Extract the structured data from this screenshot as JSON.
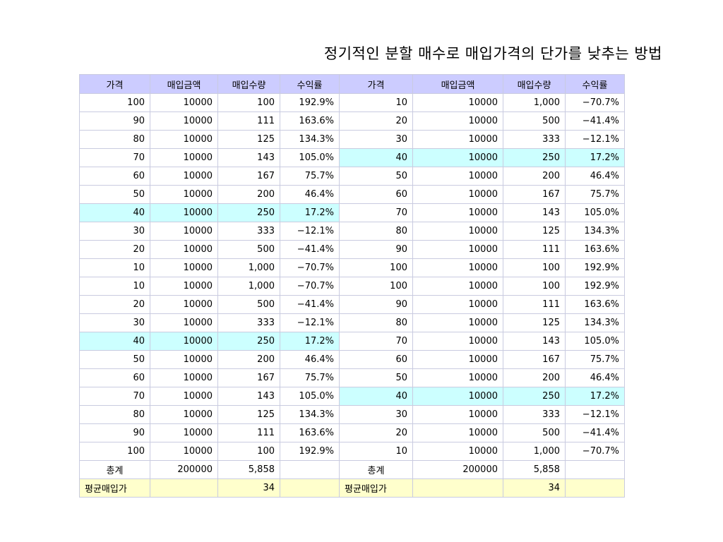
{
  "title": "정기적인 분할 매수로 매입가격의 단가를 낮추는 방법",
  "headers": [
    "가격",
    "매입금액",
    "매입수량",
    "수익률",
    "가격",
    "매입금액",
    "매입수량",
    "수익률"
  ],
  "highlight_color": "#ccffff",
  "header_color": "#ccccff",
  "average_row_color": "#ffffcc",
  "rows": [
    {
      "left": [
        "100",
        "10000",
        "100",
        "192.9%"
      ],
      "right": [
        "10",
        "10000",
        "1,000",
        "−70.7%"
      ],
      "hl_left": false,
      "hl_right": false
    },
    {
      "left": [
        "90",
        "10000",
        "111",
        "163.6%"
      ],
      "right": [
        "20",
        "10000",
        "500",
        "−41.4%"
      ],
      "hl_left": false,
      "hl_right": false
    },
    {
      "left": [
        "80",
        "10000",
        "125",
        "134.3%"
      ],
      "right": [
        "30",
        "10000",
        "333",
        "−12.1%"
      ],
      "hl_left": false,
      "hl_right": false
    },
    {
      "left": [
        "70",
        "10000",
        "143",
        "105.0%"
      ],
      "right": [
        "40",
        "10000",
        "250",
        "17.2%"
      ],
      "hl_left": false,
      "hl_right": true
    },
    {
      "left": [
        "60",
        "10000",
        "167",
        "75.7%"
      ],
      "right": [
        "50",
        "10000",
        "200",
        "46.4%"
      ],
      "hl_left": false,
      "hl_right": false
    },
    {
      "left": [
        "50",
        "10000",
        "200",
        "46.4%"
      ],
      "right": [
        "60",
        "10000",
        "167",
        "75.7%"
      ],
      "hl_left": false,
      "hl_right": false
    },
    {
      "left": [
        "40",
        "10000",
        "250",
        "17.2%"
      ],
      "right": [
        "70",
        "10000",
        "143",
        "105.0%"
      ],
      "hl_left": true,
      "hl_right": false
    },
    {
      "left": [
        "30",
        "10000",
        "333",
        "−12.1%"
      ],
      "right": [
        "80",
        "10000",
        "125",
        "134.3%"
      ],
      "hl_left": false,
      "hl_right": false
    },
    {
      "left": [
        "20",
        "10000",
        "500",
        "−41.4%"
      ],
      "right": [
        "90",
        "10000",
        "111",
        "163.6%"
      ],
      "hl_left": false,
      "hl_right": false
    },
    {
      "left": [
        "10",
        "10000",
        "1,000",
        "−70.7%"
      ],
      "right": [
        "100",
        "10000",
        "100",
        "192.9%"
      ],
      "hl_left": false,
      "hl_right": false
    },
    {
      "left": [
        "10",
        "10000",
        "1,000",
        "−70.7%"
      ],
      "right": [
        "100",
        "10000",
        "100",
        "192.9%"
      ],
      "hl_left": false,
      "hl_right": false
    },
    {
      "left": [
        "20",
        "10000",
        "500",
        "−41.4%"
      ],
      "right": [
        "90",
        "10000",
        "111",
        "163.6%"
      ],
      "hl_left": false,
      "hl_right": false
    },
    {
      "left": [
        "30",
        "10000",
        "333",
        "−12.1%"
      ],
      "right": [
        "80",
        "10000",
        "125",
        "134.3%"
      ],
      "hl_left": false,
      "hl_right": false
    },
    {
      "left": [
        "40",
        "10000",
        "250",
        "17.2%"
      ],
      "right": [
        "70",
        "10000",
        "143",
        "105.0%"
      ],
      "hl_left": true,
      "hl_right": false
    },
    {
      "left": [
        "50",
        "10000",
        "200",
        "46.4%"
      ],
      "right": [
        "60",
        "10000",
        "167",
        "75.7%"
      ],
      "hl_left": false,
      "hl_right": false
    },
    {
      "left": [
        "60",
        "10000",
        "167",
        "75.7%"
      ],
      "right": [
        "50",
        "10000",
        "200",
        "46.4%"
      ],
      "hl_left": false,
      "hl_right": false
    },
    {
      "left": [
        "70",
        "10000",
        "143",
        "105.0%"
      ],
      "right": [
        "40",
        "10000",
        "250",
        "17.2%"
      ],
      "hl_left": false,
      "hl_right": true
    },
    {
      "left": [
        "80",
        "10000",
        "125",
        "134.3%"
      ],
      "right": [
        "30",
        "10000",
        "333",
        "−12.1%"
      ],
      "hl_left": false,
      "hl_right": false
    },
    {
      "left": [
        "90",
        "10000",
        "111",
        "163.6%"
      ],
      "right": [
        "20",
        "10000",
        "500",
        "−41.4%"
      ],
      "hl_left": false,
      "hl_right": false
    },
    {
      "left": [
        "100",
        "10000",
        "100",
        "192.9%"
      ],
      "right": [
        "10",
        "10000",
        "1,000",
        "−70.7%"
      ],
      "hl_left": false,
      "hl_right": false
    }
  ],
  "total": {
    "left": [
      "총계",
      "200000",
      "5,858",
      ""
    ],
    "right": [
      "총계",
      "200000",
      "5,858",
      ""
    ]
  },
  "average": {
    "left": [
      "평균매입가",
      "",
      "34",
      ""
    ],
    "right": [
      "평균매입가",
      "",
      "34",
      ""
    ]
  }
}
